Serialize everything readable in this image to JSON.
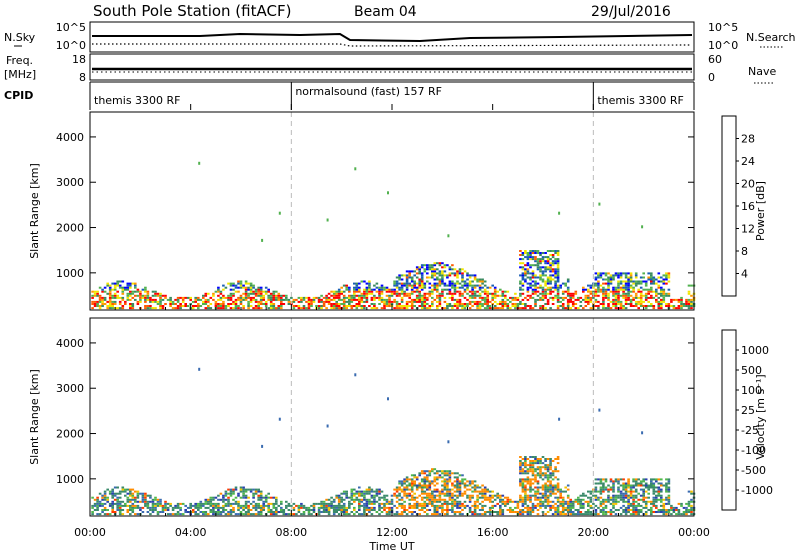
{
  "header": {
    "station": "South Pole Station (fitACF)",
    "beam": "Beam 04",
    "date": "29/Jul/2016"
  },
  "noise_panel": {
    "left_label": "N.Sky",
    "left_ticks": [
      "10^5",
      "10^0"
    ],
    "right_label": "N.Search",
    "right_ticks": [
      "10^5",
      "10^0"
    ]
  },
  "freq_panel": {
    "left_label": "Freq.",
    "left_unit": "[MHz]",
    "left_ticks": [
      "18",
      "8"
    ],
    "right_label": "Nave",
    "right_ticks": [
      "60",
      "0"
    ]
  },
  "cpid": {
    "label": "CPID",
    "segments": [
      {
        "start_hour": 0,
        "end_hour": 8,
        "name": "themis 3300 RF"
      },
      {
        "start_hour": 8,
        "end_hour": 20,
        "name": "normalsound (fast) 157 RF"
      },
      {
        "start_hour": 20,
        "end_hour": 24,
        "name": "themis 3300 RF"
      }
    ]
  },
  "x_axis": {
    "ticks": [
      {
        "hour": 0,
        "label": "00:00"
      },
      {
        "hour": 4,
        "label": "04:00"
      },
      {
        "hour": 8,
        "label": "08:00"
      },
      {
        "hour": 12,
        "label": "12:00"
      },
      {
        "hour": 16,
        "label": "16:00"
      },
      {
        "hour": 20,
        "label": "20:00"
      },
      {
        "hour": 24,
        "label": "00:00"
      }
    ],
    "label": "Time UT"
  },
  "chart_data": [
    {
      "type": "heatmap",
      "name": "power",
      "ylabel": "Slant Range [km]",
      "ylim": [
        180,
        4550
      ],
      "yticks": [
        1000,
        2000,
        3000,
        4000
      ],
      "xlim": [
        0,
        24
      ],
      "colorbar": {
        "label": "Power [dB]",
        "range": [
          0,
          32
        ],
        "ticks": [
          4,
          8,
          12,
          16,
          20,
          24,
          28
        ],
        "colors": [
          "#0000ff",
          "#1a5fb4",
          "#3a8a5f",
          "#52b14f",
          "#f2e600",
          "#ff9900",
          "#ff5a00",
          "#ff0000"
        ]
      }
    },
    {
      "type": "heatmap",
      "name": "velocity",
      "ylabel": "Slant Range [km]",
      "ylim": [
        180,
        4550
      ],
      "yticks": [
        1000,
        2000,
        3000,
        4000
      ],
      "xlim": [
        0,
        24
      ],
      "colorbar": {
        "label": "Velocity [m s⁻¹]",
        "tick_labels": [
          "1000",
          "500",
          "100",
          "25",
          "-25",
          "-100",
          "-500",
          "-1000"
        ],
        "colors": [
          "#2a3fb0",
          "#3a6bb0",
          "#3a8a6a",
          "#4fb84a",
          "#bdbdbd",
          "#f5c400",
          "#ff8c00",
          "#ff3a00",
          "#ee0000"
        ]
      }
    }
  ]
}
